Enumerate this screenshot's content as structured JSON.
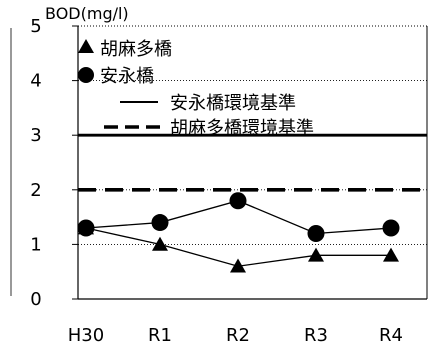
{
  "chart_data": {
    "type": "line",
    "ylabel": "BOD(mg/l)",
    "categories": [
      "H30",
      "R1",
      "R2",
      "R3",
      "R4"
    ],
    "ylim": [
      0,
      5
    ],
    "yticks": [
      0,
      1,
      2,
      3,
      4,
      5
    ],
    "grid": true,
    "legend_position": "top-left",
    "series": [
      {
        "name": "胡麻多橋",
        "marker": "triangle",
        "values": [
          1.3,
          1.0,
          0.6,
          0.8,
          0.8
        ]
      },
      {
        "name": "安永橋",
        "marker": "circle",
        "values": [
          1.3,
          1.4,
          1.8,
          1.2,
          1.3
        ]
      }
    ],
    "reference_lines": [
      {
        "name": "安永橋環境基準",
        "value": 3,
        "style": "solid"
      },
      {
        "name": "胡麻多橋環境基準",
        "value": 2,
        "style": "dashed"
      }
    ],
    "colors": {
      "line": "#000000",
      "grid": "#000000",
      "background": "#ffffff"
    }
  }
}
